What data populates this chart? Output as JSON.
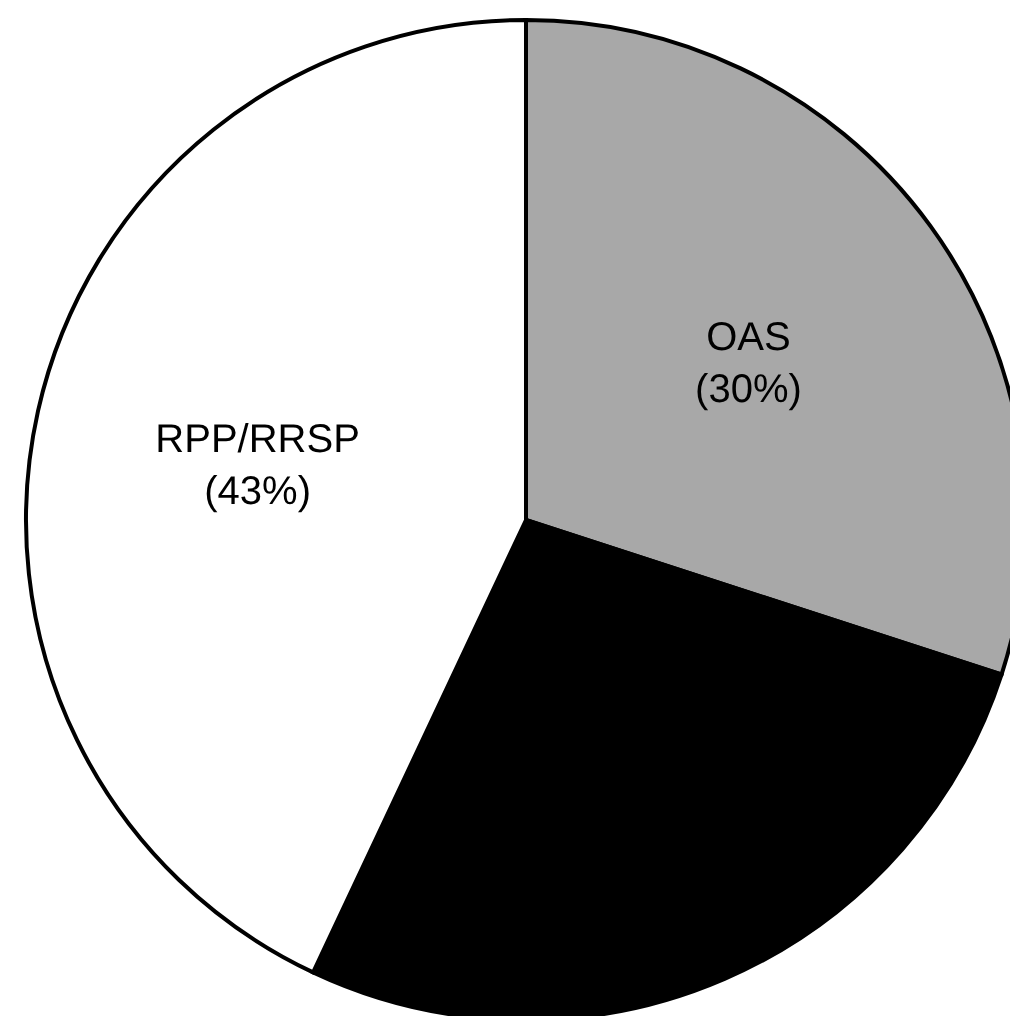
{
  "chart_data": {
    "type": "pie",
    "categories": [
      "OAS",
      null,
      "RPP/RRSP"
    ],
    "values": [
      30,
      27,
      43
    ],
    "colors": [
      "#a8a8a8",
      "#000000",
      "#ffffff"
    ],
    "value_labels": [
      "(30%)",
      null,
      "(43%)"
    ]
  }
}
